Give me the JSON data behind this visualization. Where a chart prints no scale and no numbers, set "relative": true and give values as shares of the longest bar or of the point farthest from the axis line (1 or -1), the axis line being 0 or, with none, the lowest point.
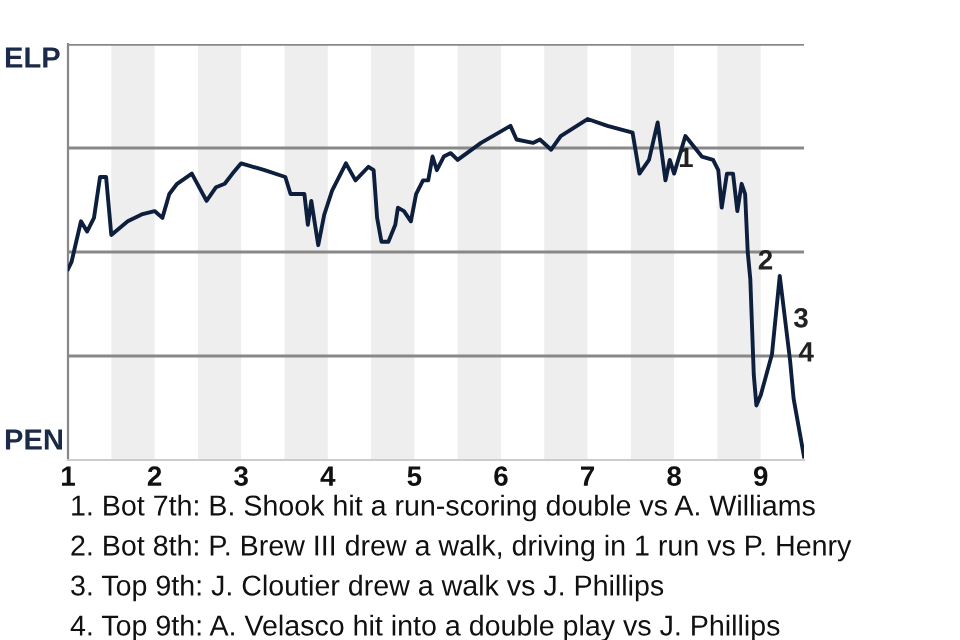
{
  "chart_data": {
    "type": "line",
    "relative": true,
    "grid": "y",
    "x": [
      1.0,
      1.04,
      1.15,
      1.22,
      1.3,
      1.37,
      1.44,
      1.5,
      1.69,
      1.85,
      2.0,
      2.09,
      2.17,
      2.26,
      2.43,
      2.6,
      2.71,
      2.81,
      2.9,
      3.0,
      3.27,
      3.51,
      3.57,
      3.73,
      3.77,
      3.81,
      3.89,
      3.96,
      4.05,
      4.21,
      4.32,
      4.47,
      4.53,
      4.57,
      4.62,
      4.7,
      4.78,
      4.81,
      4.88,
      4.96,
      5.02,
      5.1,
      5.16,
      5.21,
      5.26,
      5.34,
      5.42,
      5.5,
      5.77,
      6.11,
      6.18,
      6.37,
      6.45,
      6.58,
      6.69,
      7.0,
      7.23,
      7.52,
      7.6,
      7.71,
      7.81,
      7.9,
      7.95,
      8.0,
      8.13,
      8.32,
      8.45,
      8.51,
      8.55,
      8.61,
      8.68,
      8.73,
      8.78,
      8.82,
      8.85,
      8.88,
      8.92,
      8.95,
      9.0,
      9.13,
      9.22,
      9.34,
      9.38,
      9.5
    ],
    "series": [
      {
        "color": "#0d1f3c",
        "values": [
          0.56,
          0.58,
          0.7,
          0.67,
          0.71,
          0.83,
          0.83,
          0.66,
          0.7,
          0.72,
          0.73,
          0.71,
          0.78,
          0.81,
          0.84,
          0.76,
          0.8,
          0.81,
          0.84,
          0.87,
          0.85,
          0.83,
          0.78,
          0.78,
          0.69,
          0.76,
          0.63,
          0.72,
          0.79,
          0.87,
          0.82,
          0.86,
          0.85,
          0.71,
          0.64,
          0.64,
          0.69,
          0.74,
          0.73,
          0.7,
          0.78,
          0.82,
          0.82,
          0.89,
          0.85,
          0.89,
          0.9,
          0.88,
          0.93,
          0.98,
          0.94,
          0.93,
          0.94,
          0.91,
          0.95,
          1,
          0.98,
          0.96,
          0.84,
          0.88,
          0.99,
          0.82,
          0.88,
          0.84,
          0.95,
          0.89,
          0.88,
          0.85,
          0.74,
          0.84,
          0.84,
          0.73,
          0.81,
          0.78,
          0.61,
          0.53,
          0.25,
          0.16,
          0.19,
          0.31,
          0.54,
          0.29,
          0.18,
          0.01
        ]
      }
    ],
    "xlim": [
      1,
      9.5
    ],
    "xticks": [
      1,
      2,
      3,
      4,
      5,
      6,
      7,
      8,
      9
    ],
    "bands": [
      {
        "axis": "x",
        "from": 1.5,
        "to": 2,
        "color": "#eeeeee"
      },
      {
        "axis": "x",
        "from": 2.5,
        "to": 3,
        "color": "#eeeeee"
      },
      {
        "axis": "x",
        "from": 3.5,
        "to": 4,
        "color": "#eeeeee"
      },
      {
        "axis": "x",
        "from": 4.5,
        "to": 5,
        "color": "#eeeeee"
      },
      {
        "axis": "x",
        "from": 5.5,
        "to": 6,
        "color": "#eeeeee"
      },
      {
        "axis": "x",
        "from": 6.5,
        "to": 7,
        "color": "#eeeeee"
      },
      {
        "axis": "x",
        "from": 7.5,
        "to": 8,
        "color": "#eeeeee"
      },
      {
        "axis": "x",
        "from": 8.5,
        "to": 9,
        "color": "#eeeeee"
      }
    ],
    "annotations": [
      "ELP",
      "PEN",
      {
        "text": "1",
        "x": 7.95,
        "y": 0.88
      },
      {
        "text": "2",
        "x": 8.87,
        "y": 0.58
      },
      {
        "text": "3",
        "x": 9.28,
        "y": 0.41
      },
      {
        "text": "4",
        "x": 9.34,
        "y": 0.31
      },
      "1. Bot 7th: B. Shook hit a run-scoring double vs A. Williams",
      "2. Bot 8th: P. Brew III drew a walk, driving in 1 run vs P. Henry",
      "3. Top 9th: J. Cloutier drew a walk vs J. Phillips",
      "4. Top 9th: A. Velasco hit into a double play vs J. Phillips"
    ]
  }
}
